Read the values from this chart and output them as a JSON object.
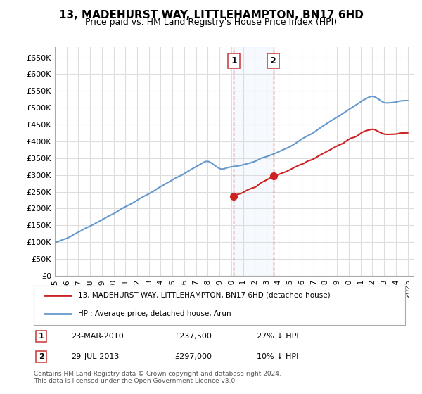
{
  "title": "13, MADEHURST WAY, LITTLEHAMPTON, BN17 6HD",
  "subtitle": "Price paid vs. HM Land Registry's House Price Index (HPI)",
  "ylabel_ticks": [
    "£0",
    "£50K",
    "£100K",
    "£150K",
    "£200K",
    "£250K",
    "£300K",
    "£350K",
    "£400K",
    "£450K",
    "£500K",
    "£550K",
    "£600K",
    "£650K"
  ],
  "ylim": [
    0,
    680000
  ],
  "xlim_start": 1995.0,
  "xlim_end": 2025.5,
  "hpi_color": "#6699cc",
  "price_color": "#cc2222",
  "sale1_date": 2010.22,
  "sale1_price": 237500,
  "sale1_label": "1",
  "sale2_date": 2013.57,
  "sale2_price": 297000,
  "sale2_label": "2",
  "legend_line1": "13, MADEHURST WAY, LITTLEHAMPTON, BN17 6HD (detached house)",
  "legend_line2": "HPI: Average price, detached house, Arun",
  "annotation1": "23-MAR-2010     £237,500     27% ↓ HPI",
  "annotation2": "29-JUL-2013     £297,000     10% ↓ HPI",
  "footer": "Contains HM Land Registry data © Crown copyright and database right 2024.\nThis data is licensed under the Open Government Licence v3.0.",
  "background_color": "#ffffff",
  "plot_bg_color": "#ffffff",
  "grid_color": "#dddddd",
  "highlight_color": "#ddeeff"
}
